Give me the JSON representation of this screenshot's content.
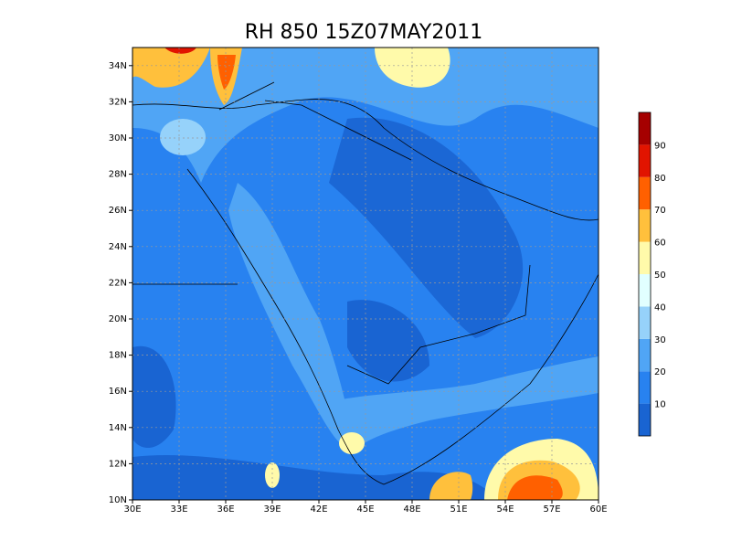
{
  "title": "RH 850  15Z07MAY2011",
  "map": {
    "lon_labels": [
      "30E",
      "33E",
      "36E",
      "39E",
      "42E",
      "45E",
      "48E",
      "51E",
      "54E",
      "57E",
      "60E"
    ],
    "lat_labels": [
      "10N",
      "12N",
      "14N",
      "16N",
      "18N",
      "20N",
      "22N",
      "24N",
      "26N",
      "28N",
      "30N",
      "32N",
      "34N"
    ]
  },
  "colorbar": {
    "labels": [
      "10",
      "20",
      "30",
      "40",
      "50",
      "60",
      "70",
      "80",
      "90"
    ],
    "colors": [
      "#1964d2",
      "#2882f0",
      "#50a5f5",
      "#96d2fa",
      "#e1ffff",
      "#fffaaa",
      "#ffc03c",
      "#ff6000",
      "#e11400",
      "#a50000"
    ]
  }
}
